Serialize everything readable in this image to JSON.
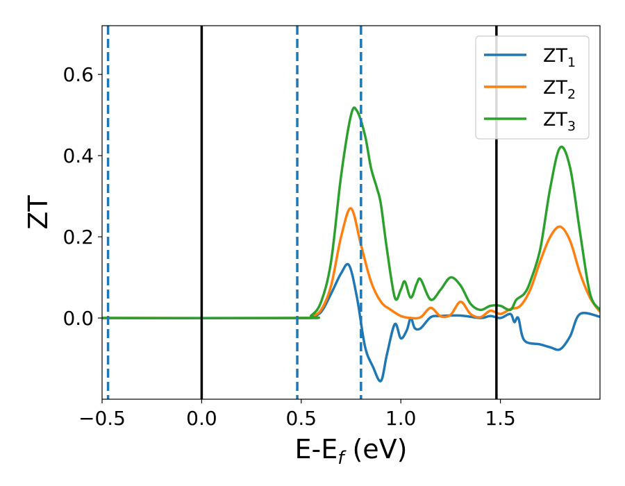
{
  "chart_data": {
    "type": "line",
    "title": "",
    "xlabel": "E-E",
    "xlabel_sub": "f",
    "xlabel_unit": " (eV)",
    "ylabel": "ZT",
    "xlim": [
      -0.5,
      2.0
    ],
    "ylim": [
      -0.2,
      0.72
    ],
    "x_ticks": [
      -0.5,
      0.0,
      0.5,
      1.0,
      1.5
    ],
    "x_tick_labels": [
      "−0.5",
      "0.0",
      "0.5",
      "1.0",
      "1.5"
    ],
    "y_ticks": [
      0.0,
      0.2,
      0.4,
      0.6
    ],
    "y_tick_labels": [
      "0.0",
      "0.2",
      "0.4",
      "0.6"
    ],
    "grid": false,
    "legend_position": "top-right",
    "vertical_lines": [
      {
        "x": 0.0,
        "style": "solid",
        "color": "#000000"
      },
      {
        "x": 1.48,
        "style": "solid",
        "color": "#000000"
      },
      {
        "x": -0.47,
        "style": "dashed",
        "color": "#1f77b4"
      },
      {
        "x": 0.48,
        "style": "dashed",
        "color": "#1f77b4"
      },
      {
        "x": 0.8,
        "style": "dashed",
        "color": "#1f77b4"
      }
    ],
    "series": [
      {
        "name": "ZT",
        "sub": "1",
        "color": "#1f77b4",
        "x": [
          -0.5,
          0.5,
          0.55,
          0.6,
          0.65,
          0.7,
          0.74,
          0.78,
          0.82,
          0.86,
          0.9,
          0.93,
          0.97,
          1.0,
          1.03,
          1.05,
          1.07,
          1.1,
          1.15,
          1.2,
          1.3,
          1.4,
          1.45,
          1.5,
          1.55,
          1.57,
          1.59,
          1.62,
          1.7,
          1.75,
          1.8,
          1.85,
          1.9,
          2.0
        ],
        "y": [
          0.0,
          0.0,
          0.003,
          0.015,
          0.06,
          0.11,
          0.13,
          0.05,
          -0.07,
          -0.12,
          -0.155,
          -0.09,
          -0.015,
          -0.05,
          -0.03,
          0.0,
          -0.025,
          -0.025,
          0.002,
          0.005,
          0.006,
          0.0,
          0.005,
          0.0,
          0.01,
          -0.01,
          0.0,
          -0.055,
          -0.065,
          -0.072,
          -0.077,
          -0.045,
          0.01,
          0.003
        ]
      },
      {
        "name": "ZT",
        "sub": "2",
        "color": "#ff7f0e",
        "x": [
          -0.5,
          0.5,
          0.55,
          0.6,
          0.65,
          0.7,
          0.75,
          0.8,
          0.85,
          0.9,
          0.95,
          1.0,
          1.05,
          1.1,
          1.15,
          1.2,
          1.25,
          1.3,
          1.35,
          1.4,
          1.45,
          1.5,
          1.55,
          1.6,
          1.65,
          1.7,
          1.75,
          1.8,
          1.85,
          1.9,
          1.95,
          2.0
        ],
        "y": [
          0.0,
          0.0,
          0.004,
          0.02,
          0.08,
          0.2,
          0.27,
          0.18,
          0.09,
          0.04,
          0.02,
          0.005,
          0.0,
          0.002,
          0.025,
          0.004,
          0.008,
          0.04,
          0.01,
          0.002,
          0.018,
          0.01,
          0.022,
          0.03,
          0.07,
          0.14,
          0.2,
          0.225,
          0.19,
          0.11,
          0.05,
          0.015
        ]
      },
      {
        "name": "ZT",
        "sub": "3",
        "color": "#2ca02c",
        "x": [
          -0.5,
          0.5,
          0.55,
          0.6,
          0.65,
          0.7,
          0.75,
          0.78,
          0.82,
          0.85,
          0.88,
          0.9,
          0.93,
          0.97,
          1.0,
          1.02,
          1.05,
          1.08,
          1.1,
          1.15,
          1.2,
          1.25,
          1.3,
          1.35,
          1.4,
          1.45,
          1.5,
          1.55,
          1.58,
          1.62,
          1.65,
          1.7,
          1.75,
          1.8,
          1.85,
          1.9,
          1.95,
          2.0
        ],
        "y": [
          0.0,
          0.0,
          0.006,
          0.04,
          0.14,
          0.35,
          0.5,
          0.51,
          0.45,
          0.37,
          0.32,
          0.28,
          0.17,
          0.05,
          0.07,
          0.09,
          0.05,
          0.085,
          0.095,
          0.045,
          0.07,
          0.1,
          0.08,
          0.035,
          0.02,
          0.03,
          0.03,
          0.02,
          0.045,
          0.06,
          0.09,
          0.17,
          0.32,
          0.42,
          0.37,
          0.21,
          0.06,
          0.02
        ]
      }
    ]
  }
}
